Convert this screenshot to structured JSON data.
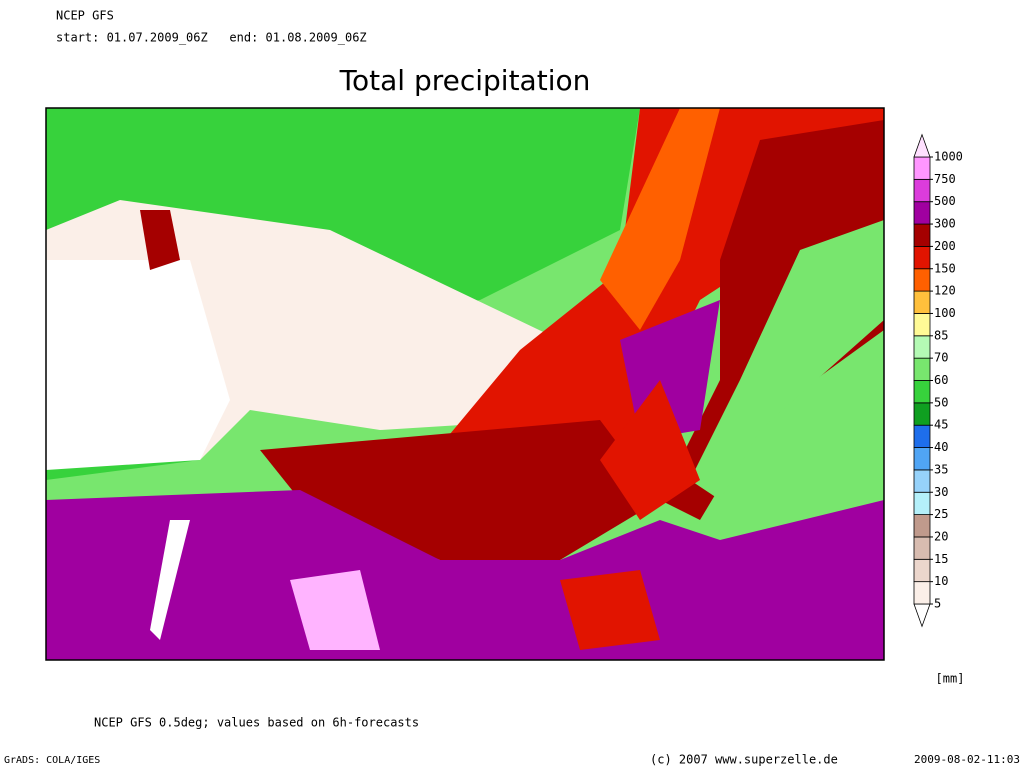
{
  "header": {
    "model": "NCEP GFS",
    "period": "start: 01.07.2009_06Z   end: 01.08.2009_06Z"
  },
  "title": "Total precipitation",
  "colorbar": {
    "levels": [
      5,
      10,
      15,
      20,
      25,
      30,
      35,
      40,
      45,
      50,
      60,
      70,
      85,
      100,
      120,
      150,
      200,
      300,
      500,
      750,
      1000
    ],
    "colors": [
      "#ffffff",
      "#fbefe8",
      "#ecd6cc",
      "#d8bcb0",
      "#c09a8c",
      "#b4f0fa",
      "#96d2fa",
      "#50a5f5",
      "#1e6eeb",
      "#0f9f20",
      "#37d23c",
      "#78e66e",
      "#b4fab4",
      "#fffa96",
      "#ffc03c",
      "#ff6000",
      "#e11400",
      "#a50000",
      "#a000a0",
      "#dc3cdc",
      "#ff96ff",
      "#ffe0ff"
    ],
    "unit": "[mm]"
  },
  "footer": {
    "note": "NCEP GFS 0.5deg; values based on 6h-forecasts",
    "software": "GrADS: COLA/IGES",
    "copyright": "(c) 2007 www.superzelle.de",
    "timestamp": "2009-08-02-11:03"
  }
}
